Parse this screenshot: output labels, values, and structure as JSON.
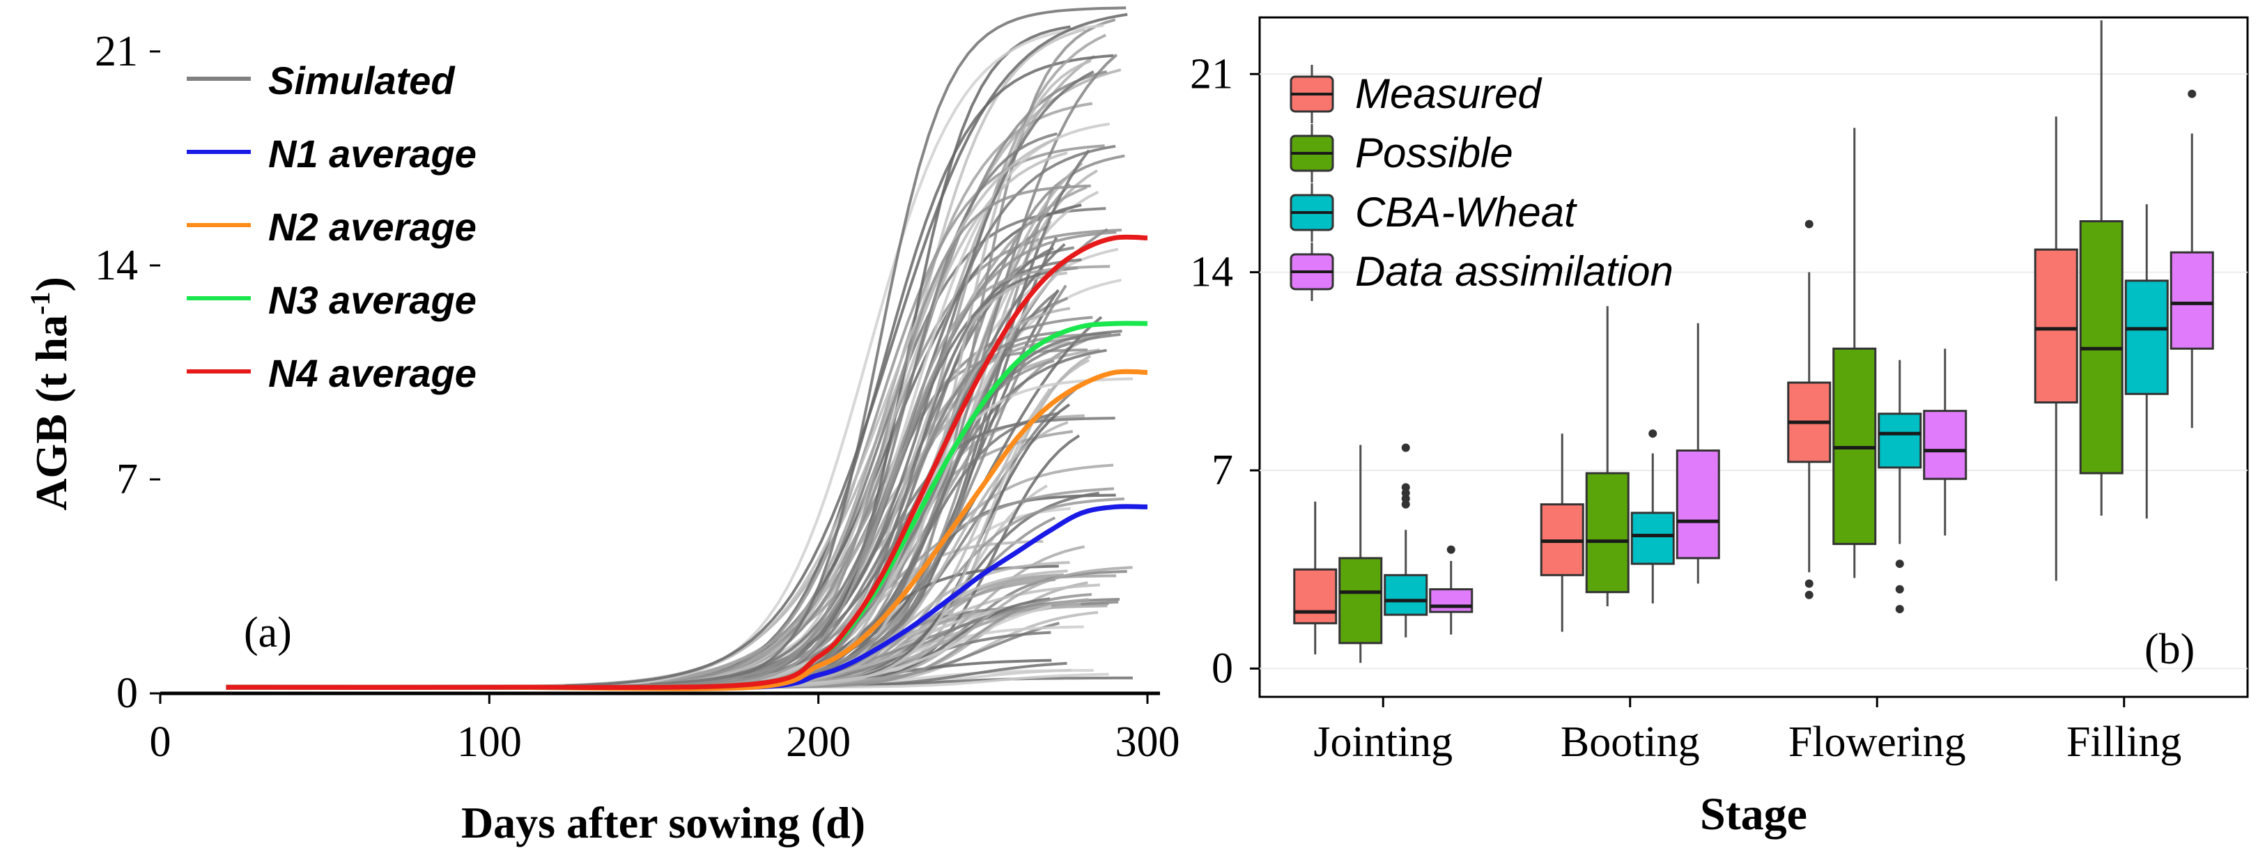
{
  "chart_data": [
    {
      "panel_label": "(a)",
      "type": "line",
      "xlabel": "Days after sowing (d)",
      "ylabel_main": "AGB (t ha",
      "ylabel_sup": "-1",
      "ylabel_end": ")",
      "xlim": [
        0,
        300
      ],
      "ylim": [
        0,
        22
      ],
      "x_ticks": [
        0,
        100,
        200,
        300
      ],
      "y_ticks": [
        0,
        7,
        14,
        21
      ],
      "legend_position": "top-left",
      "simulated": {
        "name": "Simulated",
        "color": "#808080",
        "count": 120,
        "x_start": 20,
        "x_end": 296,
        "baseline": 0.2,
        "final_range": [
          0.5,
          23
        ],
        "midpoint_range": [
          215,
          255
        ]
      },
      "series": [
        {
          "name": "N1 average",
          "color": "#1a1ae6",
          "x": [
            20,
            100,
            180,
            200,
            210,
            220,
            230,
            240,
            250,
            260,
            270,
            280,
            290,
            300
          ],
          "values": [
            0.2,
            0.2,
            0.2,
            0.6,
            1.0,
            1.6,
            2.3,
            3.1,
            3.9,
            4.6,
            5.3,
            5.9,
            6.1,
            6.1
          ]
        },
        {
          "name": "N2 average",
          "color": "#ff8c1a",
          "x": [
            20,
            100,
            180,
            200,
            210,
            220,
            230,
            240,
            250,
            260,
            270,
            280,
            290,
            300
          ],
          "values": [
            0.2,
            0.2,
            0.2,
            0.9,
            1.5,
            2.5,
            3.8,
            5.3,
            6.8,
            8.3,
            9.4,
            10.1,
            10.5,
            10.5
          ]
        },
        {
          "name": "N3 average",
          "color": "#1ae64d",
          "x": [
            20,
            100,
            180,
            200,
            210,
            220,
            230,
            240,
            250,
            260,
            270,
            280,
            290,
            300
          ],
          "values": [
            0.2,
            0.2,
            0.3,
            1.2,
            2.2,
            3.8,
            5.8,
            7.8,
            9.5,
            10.8,
            11.6,
            12.0,
            12.1,
            12.1
          ]
        },
        {
          "name": "N4 average",
          "color": "#e61a1a",
          "x": [
            20,
            100,
            180,
            200,
            210,
            220,
            230,
            240,
            250,
            260,
            270,
            280,
            290,
            300
          ],
          "values": [
            0.2,
            0.2,
            0.3,
            1.2,
            2.3,
            4.0,
            6.2,
            8.5,
            10.6,
            12.4,
            13.7,
            14.5,
            14.9,
            14.9
          ]
        }
      ]
    },
    {
      "panel_label": "(b)",
      "type": "box",
      "xlabel": "Stage",
      "ylim": [
        -1,
        23
      ],
      "y_ticks": [
        0,
        7,
        14,
        21
      ],
      "categories": [
        "Jointing",
        "Booting",
        "Flowering",
        "Filling"
      ],
      "legend_position": "top-left",
      "series": [
        {
          "name": "Measured",
          "color": "#f8766d",
          "boxes": [
            {
              "min": 0.5,
              "q1": 1.6,
              "median": 2.0,
              "q3": 3.5,
              "max": 5.9,
              "outliers": []
            },
            {
              "min": 1.3,
              "q1": 3.3,
              "median": 4.5,
              "q3": 5.8,
              "max": 8.3,
              "outliers": []
            },
            {
              "min": 3.4,
              "q1": 7.3,
              "median": 8.7,
              "q3": 10.1,
              "max": 14.0,
              "outliers": [
                15.7,
                2.6,
                3.0
              ]
            },
            {
              "min": 3.1,
              "q1": 9.4,
              "median": 12.0,
              "q3": 14.8,
              "max": 19.5,
              "outliers": []
            }
          ]
        },
        {
          "name": "Possible",
          "color": "#5aa50a",
          "boxes": [
            {
              "min": 0.2,
              "q1": 0.9,
              "median": 2.7,
              "q3": 3.9,
              "max": 7.9,
              "outliers": []
            },
            {
              "min": 2.2,
              "q1": 2.7,
              "median": 4.5,
              "q3": 6.9,
              "max": 12.8,
              "outliers": []
            },
            {
              "min": 3.2,
              "q1": 4.4,
              "median": 7.8,
              "q3": 11.3,
              "max": 19.1,
              "outliers": []
            },
            {
              "min": 5.4,
              "q1": 6.9,
              "median": 11.3,
              "q3": 15.8,
              "max": 22.9,
              "outliers": []
            }
          ]
        },
        {
          "name": "CBA-Wheat",
          "color": "#00bfc4",
          "boxes": [
            {
              "min": 1.1,
              "q1": 1.9,
              "median": 2.4,
              "q3": 3.3,
              "max": 4.9,
              "outliers": [
                5.8,
                6.0,
                6.2,
                6.4,
                7.8
              ]
            },
            {
              "min": 2.3,
              "q1": 3.7,
              "median": 4.7,
              "q3": 5.5,
              "max": 7.6,
              "outliers": [
                8.3
              ]
            },
            {
              "min": 4.4,
              "q1": 7.1,
              "median": 8.3,
              "q3": 9.0,
              "max": 10.9,
              "outliers": [
                3.7,
                2.8,
                2.1
              ]
            },
            {
              "min": 5.3,
              "q1": 9.7,
              "median": 12.0,
              "q3": 13.7,
              "max": 16.4,
              "outliers": []
            }
          ]
        },
        {
          "name": "Data assimilation",
          "color": "#e07cfb",
          "boxes": [
            {
              "min": 1.2,
              "q1": 2.0,
              "median": 2.2,
              "q3": 2.8,
              "max": 3.8,
              "outliers": [
                4.2
              ]
            },
            {
              "min": 3.0,
              "q1": 3.9,
              "median": 5.2,
              "q3": 7.7,
              "max": 12.2,
              "outliers": []
            },
            {
              "min": 4.7,
              "q1": 6.7,
              "median": 7.7,
              "q3": 9.1,
              "max": 11.3,
              "outliers": []
            },
            {
              "min": 8.5,
              "q1": 11.3,
              "median": 12.9,
              "q3": 14.7,
              "max": 18.9,
              "outliers": [
                20.3
              ]
            }
          ]
        }
      ]
    }
  ]
}
